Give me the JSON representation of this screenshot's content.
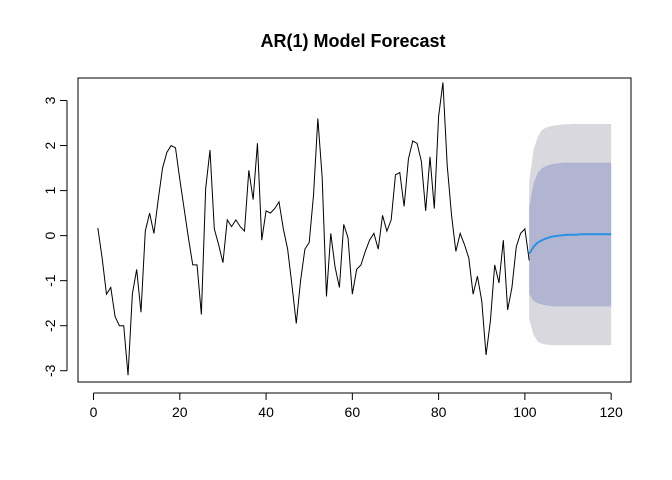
{
  "chart_data": {
    "type": "line",
    "title": "AR(1) Model Forecast",
    "xlabel": "",
    "ylabel": "",
    "xlim": [
      -3.6,
      124.6
    ],
    "ylim": [
      -3.25,
      3.5
    ],
    "x_ticks": [
      0,
      20,
      40,
      60,
      80,
      100,
      120
    ],
    "x_tick_labels": [
      "0",
      "20",
      "40",
      "60",
      "80",
      "100",
      "120"
    ],
    "y_ticks": [
      -3,
      -2,
      -1,
      0,
      1,
      2,
      3
    ],
    "y_tick_labels": [
      "-3",
      "-2",
      "-1",
      "0",
      "1",
      "2",
      "3"
    ],
    "grid": false,
    "colors": {
      "series": "#000000",
      "forecast": "#2b8fe5",
      "band_80": "#b1b5d2",
      "band_95": "#d8d8de"
    },
    "series": {
      "x_start": 1,
      "values": [
        0.17,
        -0.5,
        -1.3,
        -1.15,
        -1.8,
        -2.0,
        -2.0,
        -3.1,
        -1.3,
        -0.75,
        -1.7,
        0.1,
        0.5,
        0.05,
        0.8,
        1.5,
        1.85,
        2.0,
        1.95,
        1.25,
        0.6,
        -0.05,
        -0.65,
        -0.65,
        -1.75,
        1.05,
        1.9,
        0.15,
        -0.2,
        -0.6,
        0.35,
        0.2,
        0.35,
        0.2,
        0.1,
        1.45,
        0.8,
        2.05,
        -0.1,
        0.55,
        0.5,
        0.6,
        0.75,
        0.15,
        -0.3,
        -1.1,
        -1.95,
        -1.0,
        -0.3,
        -0.15,
        0.9,
        2.6,
        1.3,
        -1.35,
        0.05,
        -0.7,
        -1.15,
        0.25,
        -0.05,
        -1.3,
        -0.75,
        -0.65,
        -0.35,
        -0.1,
        0.05,
        -0.3,
        0.45,
        0.1,
        0.35,
        1.35,
        1.4,
        0.65,
        1.7,
        2.1,
        2.05,
        1.65,
        0.55,
        1.75,
        0.6,
        2.65,
        3.4,
        1.55,
        0.45,
        -0.35,
        0.05,
        -0.2,
        -0.5,
        -1.3,
        -0.9,
        -1.45,
        -2.65,
        -1.9,
        -0.65,
        -1.05,
        -0.1,
        -1.65,
        -1.15,
        -0.25,
        0.05,
        0.15,
        -0.55
      ]
    },
    "forecast": {
      "x": [
        101,
        102,
        103,
        104,
        105,
        106,
        107,
        108,
        109,
        110,
        111,
        112,
        113,
        114,
        115,
        116,
        117,
        118,
        119,
        120
      ],
      "mean": [
        -0.4,
        -0.25,
        -0.15,
        -0.1,
        -0.06,
        -0.03,
        -0.01,
        0.0,
        0.01,
        0.02,
        0.02,
        0.02,
        0.03,
        0.03,
        0.03,
        0.03,
        0.03,
        0.03,
        0.03,
        0.03
      ],
      "lo80": [
        -1.3,
        -1.45,
        -1.5,
        -1.53,
        -1.55,
        -1.56,
        -1.57,
        -1.57,
        -1.57,
        -1.57,
        -1.57,
        -1.57,
        -1.57,
        -1.57,
        -1.57,
        -1.57,
        -1.57,
        -1.57,
        -1.57,
        -1.57
      ],
      "hi80": [
        0.65,
        1.15,
        1.4,
        1.5,
        1.55,
        1.58,
        1.6,
        1.61,
        1.62,
        1.62,
        1.62,
        1.62,
        1.62,
        1.62,
        1.62,
        1.62,
        1.62,
        1.62,
        1.62,
        1.62
      ],
      "lo95": [
        -1.85,
        -2.2,
        -2.35,
        -2.4,
        -2.42,
        -2.43,
        -2.43,
        -2.43,
        -2.43,
        -2.43,
        -2.43,
        -2.43,
        -2.43,
        -2.43,
        -2.43,
        -2.43,
        -2.43,
        -2.43,
        -2.43,
        -2.43
      ],
      "hi95": [
        1.2,
        1.9,
        2.2,
        2.35,
        2.4,
        2.43,
        2.45,
        2.46,
        2.47,
        2.47,
        2.48,
        2.48,
        2.48,
        2.48,
        2.48,
        2.48,
        2.48,
        2.48,
        2.48,
        2.48
      ]
    }
  }
}
